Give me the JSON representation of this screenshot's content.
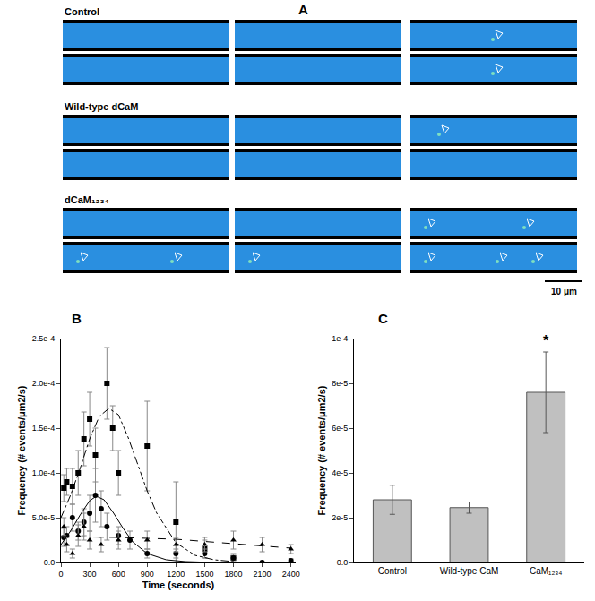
{
  "chart_data": [
    {
      "type": "image",
      "label": "A",
      "rows": [
        {
          "title": "Control"
        },
        {
          "title": "Wild-type dCaM"
        },
        {
          "title": "dCaM₁₂₃₄"
        }
      ],
      "scale_bar": "10 μm"
    },
    {
      "type": "scatter",
      "label": "B",
      "x_label": "Time (seconds)",
      "y_label": "Frequency (# events/μm2/s)",
      "xlim": [
        0,
        2450
      ],
      "xticks": [
        0,
        300,
        600,
        900,
        1200,
        1500,
        1800,
        2100,
        2400
      ],
      "ylim": [
        0,
        0.00025
      ],
      "yticks": [
        {
          "value": 0,
          "label": "0.0"
        },
        {
          "value": 5e-05,
          "label": "5.0e-5"
        },
        {
          "value": 0.0001,
          "label": "1.0e-4"
        },
        {
          "value": 0.00015,
          "label": "1.5e-4"
        },
        {
          "value": 0.0002,
          "label": "2.0e-4"
        },
        {
          "value": 0.00025,
          "label": "2.5e-4"
        }
      ],
      "series": [
        {
          "type": "scatter",
          "marker": "square",
          "color": "#000000",
          "x": [
            30,
            60,
            120,
            180,
            240,
            300,
            360,
            480,
            540,
            600,
            900,
            1200,
            1500,
            1800
          ],
          "values": [
            8.3e-05,
            9e-05,
            8.5e-05,
            0.0001,
            0.000138,
            0.00016,
            0.00012,
            0.0002,
            0.00015,
            0.0001,
            0.00013,
            4.5e-05,
            1.5e-05,
            5e-06
          ],
          "error": [
            1.5e-05,
            1.5e-05,
            2e-05,
            2.5e-05,
            3e-05,
            3e-05,
            3e-05,
            4e-05,
            2.5e-05,
            2.5e-05,
            5e-05,
            4.5e-05,
            1e-05,
            5e-06
          ]
        },
        {
          "type": "scatter",
          "marker": "circle",
          "color": "#000000",
          "x": [
            30,
            60,
            120,
            180,
            240,
            300,
            360,
            420,
            480,
            600,
            720,
            900,
            1200,
            1500,
            1800,
            2100,
            2400
          ],
          "values": [
            2.8e-05,
            3e-05,
            5e-05,
            3.5e-05,
            4.5e-05,
            5.5e-05,
            7.5e-05,
            6e-05,
            4e-05,
            3e-05,
            2.5e-05,
            1e-05,
            1e-05,
            1e-05,
            5e-06,
            0,
            2e-06
          ],
          "error": [
            1e-05,
            1e-05,
            1.5e-05,
            1e-05,
            1.5e-05,
            2e-05,
            3e-05,
            2e-05,
            1.5e-05,
            1e-05,
            1e-05,
            5e-06,
            5e-06,
            5e-06,
            3e-06,
            0,
            2e-06
          ]
        },
        {
          "type": "scatter",
          "marker": "triangle-up",
          "color": "#000000",
          "x": [
            30,
            60,
            120,
            180,
            240,
            300,
            420,
            600,
            900,
            1200,
            1500,
            1800,
            2100,
            2400
          ],
          "values": [
            4e-05,
            2e-05,
            1e-05,
            3e-05,
            4e-05,
            2.5e-05,
            2e-05,
            2.5e-05,
            2.5e-05,
            2e-05,
            2e-05,
            2.5e-05,
            2e-05,
            1.5e-05
          ],
          "error": [
            1e-05,
            8e-06,
            5e-06,
            1.2e-05,
            1.5e-05,
            1e-05,
            8e-06,
            1e-05,
            1e-05,
            8e-06,
            8e-06,
            1e-05,
            8e-06,
            5e-06
          ]
        },
        {
          "type": "line",
          "line_style": "dashdot",
          "color": "#000000",
          "x": [
            0,
            100,
            200,
            300,
            400,
            500,
            600,
            700,
            800,
            900,
            1000,
            1200,
            1400,
            1600,
            1800
          ],
          "values": [
            5e-05,
            7.5e-05,
            0.000105,
            0.000138,
            0.000163,
            0.000172,
            0.000165,
            0.00014,
            0.00011,
            8e-05,
            5.5e-05,
            2.2e-05,
            8e-06,
            3e-06,
            1e-06
          ]
        },
        {
          "type": "line",
          "line_style": "solid",
          "color": "#000000",
          "x": [
            0,
            100,
            200,
            300,
            370,
            450,
            550,
            650,
            750,
            900,
            1100,
            1300,
            1600,
            2400
          ],
          "values": [
            2e-05,
            3.5e-05,
            5.3e-05,
            6.9e-05,
            7.4e-05,
            7e-05,
            5.5e-05,
            3.8e-05,
            2.3e-05,
            1e-05,
            3e-06,
            1e-06,
            0,
            0
          ]
        },
        {
          "type": "line",
          "line_style": "dash",
          "color": "#000000",
          "x": [
            0,
            600,
            1200,
            1800,
            2400
          ],
          "values": [
            2.9e-05,
            2.8e-05,
            2.6e-05,
            2.1e-05,
            1.6e-05
          ]
        }
      ]
    },
    {
      "type": "bar",
      "label": "C",
      "y_label": "Frequency (# events/μm2/s)",
      "categories": [
        "Control",
        "Wild-type CaM",
        "CaM₁₂₃₄"
      ],
      "values": [
        2.8e-05,
        2.45e-05,
        7.6e-05
      ],
      "error": [
        6.5e-06,
        2.5e-06,
        1.8e-05
      ],
      "color": "#c0c0c0",
      "ylim": [
        0,
        0.0001
      ],
      "yticks": [
        {
          "value": 0,
          "label": "0.0"
        },
        {
          "value": 2e-05,
          "label": "2e-5"
        },
        {
          "value": 4e-05,
          "label": "4e-5"
        },
        {
          "value": 6e-05,
          "label": "6e-5"
        },
        {
          "value": 8e-05,
          "label": "8e-5"
        },
        {
          "value": 0.0001,
          "label": "1e-4"
        }
      ],
      "annotations": [
        {
          "text": "*",
          "category": "CaM₁₂₃₄"
        }
      ]
    }
  ]
}
